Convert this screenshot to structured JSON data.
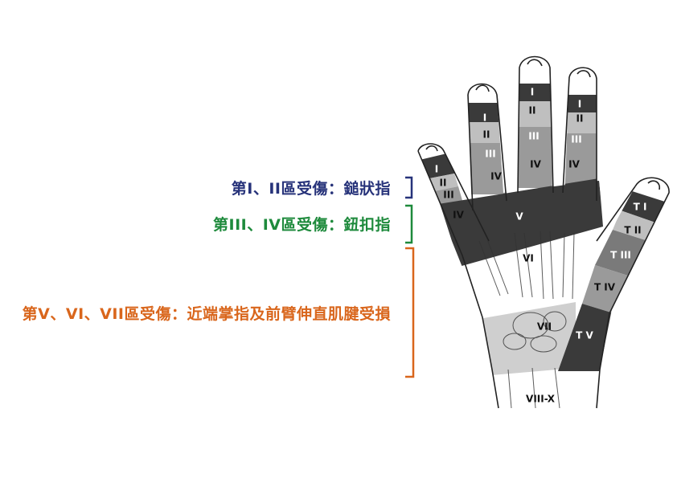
{
  "labels": {
    "group1": "第I、II區受傷：鎚狀指",
    "group2": "第III、IV區受傷：鈕扣指",
    "group3": "第V、VI、VII區受傷：近端掌指及前臂伸直肌腱受損"
  },
  "zones": {
    "i": "I",
    "ii": "II",
    "iii": "III",
    "iv": "IV",
    "v": "V",
    "vi": "VI",
    "vii": "VII",
    "viii_x": "VIII-X",
    "t1": "T I",
    "t2": "T II",
    "t3": "T III",
    "t4": "T IV",
    "t5": "T V"
  },
  "colors": {
    "group1": "#27337a",
    "group2": "#1e8a3c",
    "group3": "#d9661c",
    "zone_dark": "#3a3a3a",
    "zone_mid": "#9a9a9a",
    "zone_light": "#cfcfcf",
    "outline": "#222222"
  }
}
